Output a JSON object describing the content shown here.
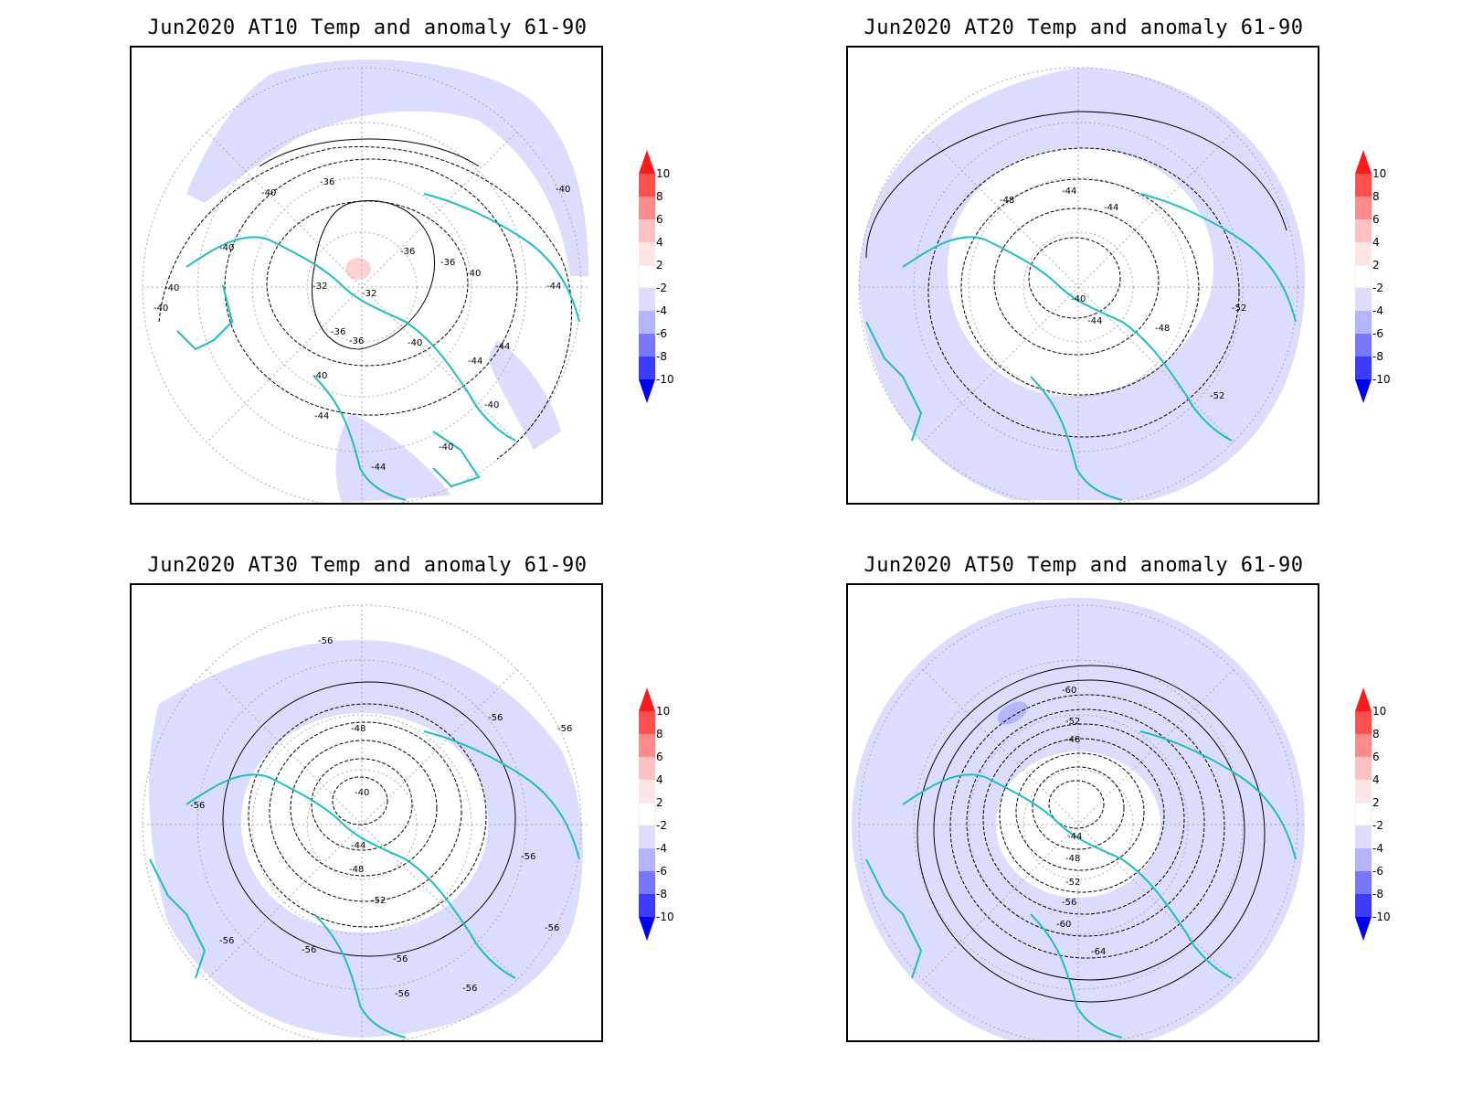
{
  "panels": [
    {
      "title": "Jun2020 AT10 Temp and anomaly 61-90",
      "contour_labels": [
        "-40",
        "-36",
        "-40",
        "-40",
        "-36",
        "-36",
        "-40",
        "-32",
        "-32",
        "-40",
        "-44",
        "-36",
        "-36",
        "-40",
        "-44",
        "-40",
        "-44",
        "-44",
        "-40",
        "-40",
        "-40",
        "-44"
      ]
    },
    {
      "title": "Jun2020 AT20 Temp and anomaly 61-90",
      "contour_labels": [
        "-48",
        "-44",
        "-44",
        "-40",
        "-44",
        "-48",
        "-52",
        "-52"
      ]
    },
    {
      "title": "Jun2020 AT30 Temp and anomaly 61-90",
      "contour_labels": [
        "-56",
        "-48",
        "-40",
        "-56",
        "-44",
        "-48",
        "-52",
        "-56",
        "-56",
        "-56",
        "-56",
        "-56",
        "-56",
        "-56",
        "-56",
        "-56"
      ]
    },
    {
      "title": "Jun2020 AT50 Temp and anomaly 61-90",
      "contour_labels": [
        "-60",
        "-52",
        "-48",
        "-44",
        "-48",
        "-52",
        "-56",
        "-60",
        "-64"
      ]
    }
  ],
  "colorbar": {
    "labels": [
      "10",
      "8",
      "6",
      "4",
      "2",
      "-2",
      "-4",
      "-6",
      "-8",
      "-10"
    ],
    "colors": [
      "#ff1a1a",
      "#ff5050",
      "#ff8a8a",
      "#ffc0c0",
      "#ffe6e6",
      "#ffffff",
      "#dcdcff",
      "#b4b4ff",
      "#7878ff",
      "#3c3cff",
      "#0000ff"
    ]
  },
  "colors": {
    "anomaly_negative_light": "#dcdcff",
    "anomaly_negative_medium": "#b4b4ff",
    "anomaly_positive_light": "#ffd2d2",
    "coastline": "#1fbfbf"
  }
}
